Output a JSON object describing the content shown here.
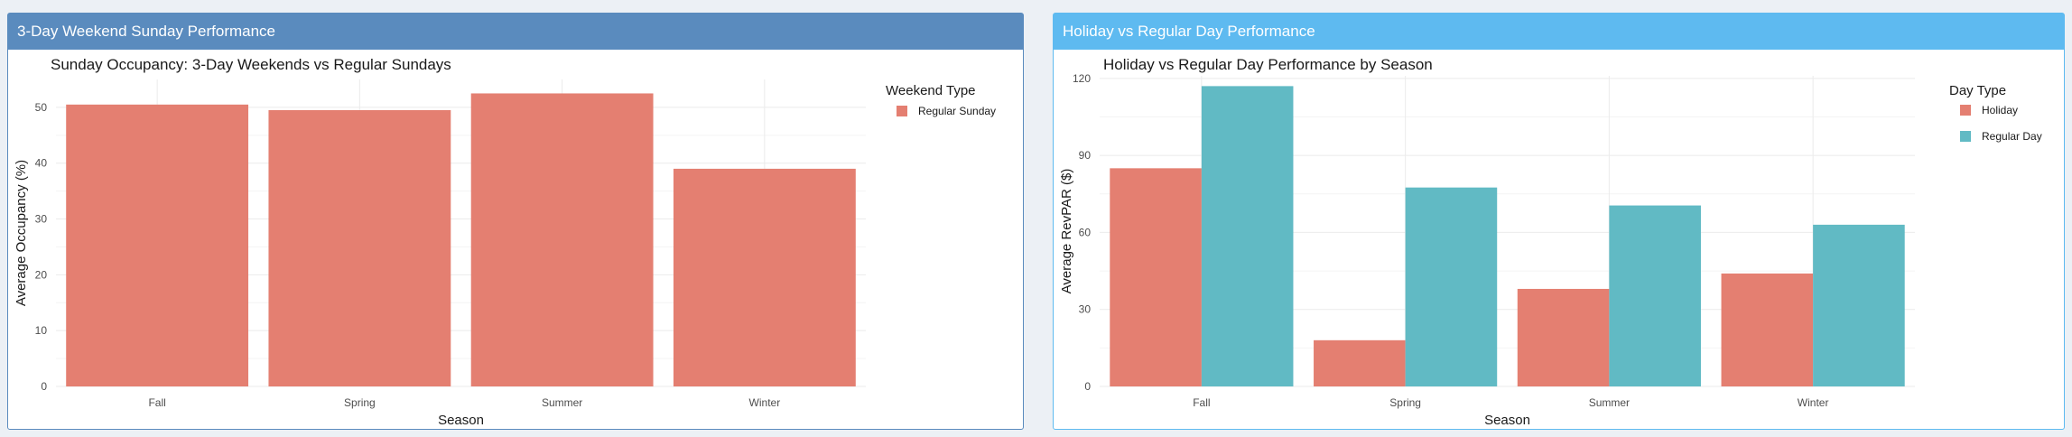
{
  "panels": {
    "left": {
      "header": "3-Day Weekend Sunday Performance"
    },
    "right": {
      "header": "Holiday vs Regular Day Performance"
    }
  },
  "chart_data": [
    {
      "type": "bar",
      "title": "Sunday Occupancy: 3-Day Weekends vs Regular Sundays",
      "xlabel": "Season",
      "ylabel": "Average Occupancy (%)",
      "categories": [
        "Fall",
        "Spring",
        "Summer",
        "Winter"
      ],
      "series": [
        {
          "name": "Regular Sunday",
          "color": "#e47f71",
          "values": [
            50.5,
            49.5,
            52.5,
            39.0
          ]
        }
      ],
      "yticks": [
        0,
        10,
        20,
        30,
        40,
        50
      ],
      "ylim": [
        0,
        55
      ],
      "legend_title": "Weekend Type",
      "legend_position": "right",
      "grid": true
    },
    {
      "type": "bar",
      "title": "Holiday vs Regular Day Performance by Season",
      "xlabel": "Season",
      "ylabel": "Average RevPAR ($)",
      "categories": [
        "Fall",
        "Spring",
        "Summer",
        "Winter"
      ],
      "series": [
        {
          "name": "Holiday",
          "color": "#e47f71",
          "values": [
            85,
            18,
            38,
            44
          ]
        },
        {
          "name": "Regular Day",
          "color": "#61bac4",
          "values": [
            117,
            77.5,
            70.5,
            63
          ]
        }
      ],
      "yticks": [
        0,
        30,
        60,
        90,
        120
      ],
      "ylim": [
        0,
        121
      ],
      "legend_title": "Day Type",
      "legend_position": "right",
      "grid": true
    }
  ]
}
